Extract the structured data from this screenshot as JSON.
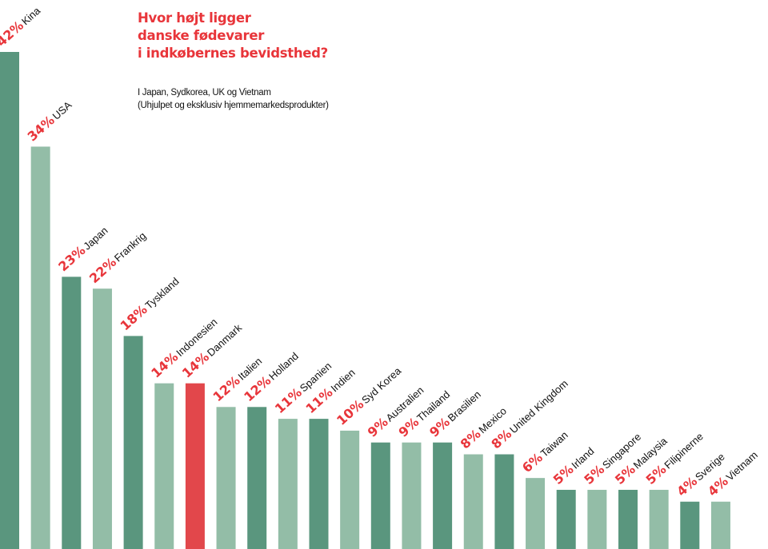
{
  "chart_data": {
    "type": "bar",
    "title": [
      "Hvor højt ligger",
      "danske fødevarer",
      "i indkøbernes bevidsthed?"
    ],
    "subtitle": [
      "I Japan, Sydkorea, UK og Vietnam",
      "(Uhjulpet og eksklusiv hjemmemarkedsprodukter)"
    ],
    "categories": [
      "Kina",
      "USA",
      "Japan",
      "Frankrig",
      "Tyskland",
      "Indonesien",
      "Danmark",
      "Italien",
      "Holland",
      "Spanien",
      "Indien",
      "Syd Korea",
      "Australien",
      "Thailand",
      "Brasilien",
      "Mexico",
      "United Kingdom",
      "Taiwan",
      "Irland",
      "Singapore",
      "Malaysia",
      "Filipinerne",
      "Sverige",
      "Vietnam"
    ],
    "values": [
      42,
      34,
      23,
      22,
      18,
      14,
      14,
      12,
      12,
      11,
      11,
      10,
      9,
      9,
      9,
      8,
      8,
      6,
      5,
      5,
      5,
      5,
      4,
      4
    ],
    "unit": "%",
    "highlight": "Danmark",
    "ylim": [
      0,
      42
    ],
    "grid": false,
    "colors": {
      "dark": "#5a967e",
      "light": "#93bda7",
      "highlight": "#e2474b",
      "label_value": "#e8353a",
      "title": "#e8353a"
    }
  }
}
